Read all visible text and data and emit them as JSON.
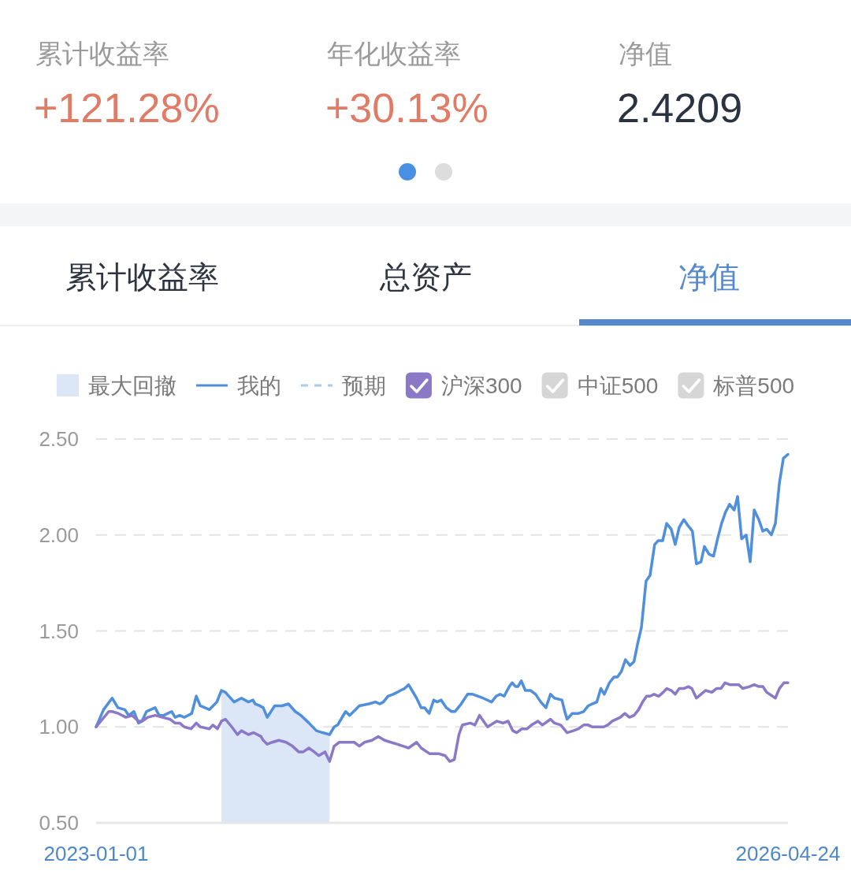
{
  "chart_data": [
    {
      "type": "other",
      "annotations": [
        "累计收益率",
        "+121.28%",
        "年化收益率",
        "+30.13%",
        "净值",
        "2.4209"
      ],
      "colors": [
        "#9a9a9a",
        "#e07b66",
        "#9a9a9a",
        "#e07b66",
        "#9a9a9a",
        "#2b3240"
      ]
    },
    {
      "type": "other",
      "annotations": [
        "累计收益率",
        "总资产",
        "净值"
      ],
      "colors": [
        "#2e3440",
        "#2e3440",
        "#5489d0"
      ]
    },
    {
      "type": "line",
      "xlim": [
        "2023-01-01",
        "2026-04-24"
      ],
      "xticks": [
        "2023-01-01",
        "2026-04-24"
      ],
      "ylim": [
        0.5,
        2.5
      ],
      "yticks": [
        {
          "value": 0.5,
          "label": "0.50"
        },
        {
          "value": 1.0,
          "label": "1.00"
        },
        {
          "value": 1.5,
          "label": "1.50"
        },
        {
          "value": 2.0,
          "label": "2.00"
        },
        {
          "value": 2.5,
          "label": "2.50"
        }
      ],
      "grid": "y",
      "legend": "top",
      "bands": [
        {
          "axis": "x",
          "from": "2023-08-08",
          "to": "2024-02-13",
          "label": "最大回撤",
          "color": "#dbe6f7"
        }
      ],
      "series": [
        {
          "name": "我的",
          "color": "#4f8fdb",
          "line_style": "solid",
          "x": [
            "2023-01-01",
            "2023-01-14",
            "2023-01-29",
            "2023-02-08",
            "2023-02-20",
            "2023-02-27",
            "2023-03-08",
            "2023-03-16",
            "2023-03-22",
            "2023-03-30",
            "2023-04-14",
            "2023-04-21",
            "2023-04-29",
            "2023-05-13",
            "2023-05-19",
            "2023-05-27",
            "2023-06-04",
            "2023-06-17",
            "2023-06-25",
            "2023-07-02",
            "2023-07-18",
            "2023-07-31",
            "2023-08-08",
            "2023-08-15",
            "2023-08-30",
            "2023-09-12",
            "2023-09-24",
            "2023-10-02",
            "2023-10-06",
            "2023-10-14",
            "2023-10-20",
            "2023-10-27",
            "2023-11-09",
            "2023-11-22",
            "2023-12-03",
            "2023-12-15",
            "2023-12-25",
            "2024-01-08",
            "2024-01-21",
            "2024-02-01",
            "2024-02-13",
            "2024-02-21",
            "2024-02-27",
            "2024-03-12",
            "2024-03-19",
            "2024-04-05",
            "2024-04-22",
            "2024-05-03",
            "2024-05-11",
            "2024-05-17",
            "2024-05-25",
            "2024-06-03",
            "2024-06-10",
            "2024-06-16",
            "2024-06-23",
            "2024-06-30",
            "2024-07-06",
            "2024-07-14",
            "2024-07-22",
            "2024-07-28",
            "2024-08-05",
            "2024-08-13",
            "2024-08-19",
            "2024-08-26",
            "2024-09-04",
            "2024-09-13",
            "2024-09-19",
            "2024-09-30",
            "2024-10-11",
            "2024-10-20",
            "2024-11-07",
            "2024-11-22",
            "2024-11-30",
            "2024-12-07",
            "2024-12-14",
            "2024-12-23",
            "2024-12-28",
            "2025-01-03",
            "2025-01-07",
            "2025-01-13",
            "2025-01-20",
            "2025-01-29",
            "2025-02-07",
            "2025-02-16",
            "2025-02-25",
            "2025-03-05",
            "2025-03-12",
            "2025-03-25",
            "2025-03-30",
            "2025-04-03",
            "2025-04-12",
            "2025-04-23",
            "2025-05-02",
            "2025-05-10",
            "2025-05-17",
            "2025-05-25",
            "2025-06-01",
            "2025-06-07",
            "2025-06-16",
            "2025-06-24",
            "2025-06-30",
            "2025-07-07",
            "2025-07-14",
            "2025-07-22",
            "2025-07-29",
            "2025-08-04",
            "2025-08-11",
            "2025-08-19",
            "2025-08-26",
            "2025-09-03",
            "2025-09-09",
            "2025-09-17",
            "2025-09-24",
            "2025-10-02",
            "2025-10-09",
            "2025-10-16",
            "2025-10-24",
            "2025-10-31",
            "2025-11-08",
            "2025-11-15",
            "2025-11-23",
            "2025-11-29",
            "2025-12-07",
            "2025-12-15",
            "2025-12-22",
            "2025-12-29",
            "2026-01-05",
            "2026-01-12",
            "2026-01-20",
            "2026-01-26",
            "2026-02-02",
            "2026-02-10",
            "2026-02-17",
            "2026-02-24",
            "2026-03-04",
            "2026-03-11",
            "2026-03-18",
            "2026-03-26",
            "2026-04-02",
            "2026-04-09",
            "2026-04-16",
            "2026-04-24"
          ],
          "values": [
            1.0,
            1.09,
            1.15,
            1.1,
            1.09,
            1.06,
            1.08,
            1.02,
            1.03,
            1.08,
            1.1,
            1.06,
            1.06,
            1.08,
            1.05,
            1.06,
            1.05,
            1.07,
            1.16,
            1.11,
            1.09,
            1.13,
            1.19,
            1.18,
            1.13,
            1.15,
            1.13,
            1.14,
            1.12,
            1.11,
            1.1,
            1.05,
            1.11,
            1.11,
            1.12,
            1.08,
            1.06,
            1.02,
            0.98,
            0.97,
            0.96,
            1.0,
            1.01,
            1.08,
            1.06,
            1.11,
            1.12,
            1.13,
            1.12,
            1.13,
            1.16,
            1.17,
            1.18,
            1.19,
            1.2,
            1.22,
            1.19,
            1.15,
            1.1,
            1.1,
            1.07,
            1.14,
            1.13,
            1.14,
            1.1,
            1.08,
            1.08,
            1.12,
            1.17,
            1.17,
            1.15,
            1.13,
            1.16,
            1.17,
            1.16,
            1.21,
            1.23,
            1.21,
            1.21,
            1.24,
            1.19,
            1.19,
            1.17,
            1.13,
            1.1,
            1.17,
            1.15,
            1.14,
            1.08,
            1.04,
            1.07,
            1.07,
            1.08,
            1.11,
            1.12,
            1.13,
            1.2,
            1.17,
            1.23,
            1.26,
            1.26,
            1.29,
            1.35,
            1.32,
            1.34,
            1.43,
            1.52,
            1.76,
            1.79,
            1.95,
            1.97,
            1.97,
            2.06,
            2.03,
            1.95,
            2.04,
            2.08,
            2.05,
            2.02,
            1.85,
            1.86,
            1.94,
            1.9,
            1.89,
            1.98,
            2.06,
            2.12,
            2.16,
            2.13,
            2.2,
            1.98,
            2.0,
            1.86,
            2.13,
            2.08,
            2.02,
            2.03,
            2.0,
            2.06,
            2.27,
            2.4,
            2.42
          ]
        },
        {
          "name": "预期",
          "color": "#a9c9ee",
          "line_style": "dashed"
        },
        {
          "name": "沪深300",
          "color": "#8b79c8",
          "x": [
            "2023-01-01",
            "2023-01-12",
            "2023-01-23",
            "2023-01-29",
            "2023-02-09",
            "2023-02-22",
            "2023-03-05",
            "2023-03-16",
            "2023-03-23",
            "2023-04-01",
            "2023-04-14",
            "2023-04-27",
            "2023-05-10",
            "2023-05-19",
            "2023-05-27",
            "2023-06-04",
            "2023-06-16",
            "2023-06-25",
            "2023-07-02",
            "2023-07-18",
            "2023-07-24",
            "2023-08-01",
            "2023-08-08",
            "2023-08-15",
            "2023-08-26",
            "2023-09-05",
            "2023-09-12",
            "2023-09-24",
            "2023-10-03",
            "2023-10-16",
            "2023-10-20",
            "2023-10-27",
            "2023-11-05",
            "2023-11-16",
            "2023-11-29",
            "2023-12-10",
            "2023-12-21",
            "2023-12-29",
            "2024-01-08",
            "2024-01-17",
            "2024-01-25",
            "2024-02-05",
            "2024-02-13",
            "2024-02-21",
            "2024-03-01",
            "2024-03-14",
            "2024-03-27",
            "2024-04-05",
            "2024-04-14",
            "2024-04-27",
            "2024-05-08",
            "2024-05-19",
            "2024-05-30",
            "2024-06-10",
            "2024-06-30",
            "2024-07-14",
            "2024-07-22",
            "2024-08-06",
            "2024-08-22",
            "2024-09-02",
            "2024-09-10",
            "2024-09-18",
            "2024-09-26",
            "2024-10-02",
            "2024-10-16",
            "2024-10-24",
            "2024-11-01",
            "2024-11-15",
            "2024-12-01",
            "2024-12-12",
            "2024-12-21",
            "2024-12-29",
            "2025-01-05",
            "2025-01-14",
            "2025-01-23",
            "2025-01-31",
            "2025-02-11",
            "2025-02-19",
            "2025-03-05",
            "2025-03-12",
            "2025-03-23",
            "2025-04-03",
            "2025-04-14",
            "2025-04-23",
            "2025-05-02",
            "2025-05-10",
            "2025-05-17",
            "2025-05-24",
            "2025-06-06",
            "2025-06-13",
            "2025-06-21",
            "2025-07-05",
            "2025-07-13",
            "2025-07-21",
            "2025-07-29",
            "2025-08-06",
            "2025-08-13",
            "2025-08-20",
            "2025-08-26",
            "2025-09-02",
            "2025-09-10",
            "2025-09-18",
            "2025-09-24",
            "2025-10-02",
            "2025-10-09",
            "2025-10-16",
            "2025-10-24",
            "2025-11-01",
            "2025-11-07",
            "2025-11-15",
            "2025-11-23",
            "2025-12-01",
            "2025-12-12",
            "2025-12-20",
            "2025-12-28",
            "2026-01-04",
            "2026-01-12",
            "2026-01-21",
            "2026-01-28",
            "2026-02-04",
            "2026-02-16",
            "2026-02-24",
            "2026-03-04",
            "2026-03-11",
            "2026-03-18",
            "2026-04-02",
            "2026-04-09",
            "2026-04-17",
            "2026-04-24"
          ],
          "values": [
            1.0,
            1.04,
            1.08,
            1.08,
            1.07,
            1.05,
            1.06,
            1.03,
            1.03,
            1.05,
            1.06,
            1.05,
            1.04,
            1.02,
            1.02,
            1.0,
            0.99,
            1.02,
            1.0,
            0.99,
            1.01,
            0.99,
            1.03,
            1.04,
            1.0,
            0.96,
            0.98,
            0.96,
            0.97,
            0.95,
            0.93,
            0.91,
            0.92,
            0.93,
            0.92,
            0.9,
            0.87,
            0.87,
            0.89,
            0.87,
            0.85,
            0.87,
            0.82,
            0.9,
            0.92,
            0.92,
            0.92,
            0.9,
            0.92,
            0.93,
            0.95,
            0.93,
            0.92,
            0.91,
            0.89,
            0.92,
            0.89,
            0.86,
            0.86,
            0.85,
            0.82,
            0.83,
            0.96,
            1.01,
            1.02,
            1.01,
            1.06,
            1.0,
            1.03,
            1.02,
            1.03,
            0.98,
            0.97,
            0.99,
            0.99,
            1.01,
            1.03,
            1.01,
            1.04,
            1.02,
            1.01,
            0.97,
            0.98,
            0.99,
            1.01,
            1.01,
            1.0,
            1.0,
            1.0,
            1.01,
            1.03,
            1.05,
            1.07,
            1.05,
            1.06,
            1.09,
            1.13,
            1.16,
            1.16,
            1.17,
            1.16,
            1.18,
            1.2,
            1.19,
            1.17,
            1.2,
            1.2,
            1.21,
            1.2,
            1.15,
            1.17,
            1.19,
            1.18,
            1.2,
            1.2,
            1.23,
            1.22,
            1.22,
            1.22,
            1.2,
            1.21,
            1.22,
            1.21,
            1.21,
            1.18,
            1.15,
            1.2,
            1.23,
            1.23
          ]
        },
        {
          "name": "中证500",
          "color": "#d6d6d6"
        },
        {
          "name": "标普500",
          "color": "#d6d6d6"
        }
      ]
    }
  ]
}
